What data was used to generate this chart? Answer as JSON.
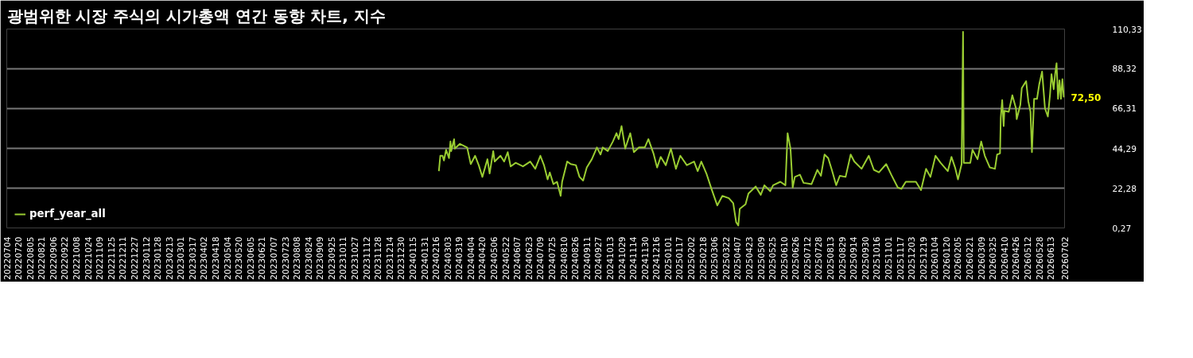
{
  "chart_data": {
    "type": "line",
    "title": "광범위한 시장 주식의 시가총액 연간 동향 차트, 지수",
    "xlim": [
      "2022-07-04",
      "2026-07-02"
    ],
    "xticks": [
      {
        "value": "2022-07-04",
        "label": "20220704"
      },
      {
        "value": "2022-07-20",
        "label": "20220720"
      },
      {
        "value": "2022-08-05",
        "label": "20220805"
      },
      {
        "value": "2022-08-21",
        "label": "20220821"
      },
      {
        "value": "2022-09-06",
        "label": "20220906"
      },
      {
        "value": "2022-09-22",
        "label": "20220922"
      },
      {
        "value": "2022-10-08",
        "label": "20221008"
      },
      {
        "value": "2022-10-24",
        "label": "20221024"
      },
      {
        "value": "2022-11-09",
        "label": "20221109"
      },
      {
        "value": "2022-11-25",
        "label": "20221125"
      },
      {
        "value": "2022-12-11",
        "label": "20221211"
      },
      {
        "value": "2022-12-27",
        "label": "20221227"
      },
      {
        "value": "2023-01-12",
        "label": "20230112"
      },
      {
        "value": "2023-01-28",
        "label": "20230128"
      },
      {
        "value": "2023-02-13",
        "label": "20230213"
      },
      {
        "value": "2023-03-01",
        "label": "20230301"
      },
      {
        "value": "2023-03-17",
        "label": "20230317"
      },
      {
        "value": "2023-04-02",
        "label": "20230402"
      },
      {
        "value": "2023-04-18",
        "label": "20230418"
      },
      {
        "value": "2023-05-04",
        "label": "20230504"
      },
      {
        "value": "2023-05-20",
        "label": "20230520"
      },
      {
        "value": "2023-06-05",
        "label": "20230605"
      },
      {
        "value": "2023-06-21",
        "label": "20230621"
      },
      {
        "value": "2023-07-07",
        "label": "20230707"
      },
      {
        "value": "2023-07-23",
        "label": "20230723"
      },
      {
        "value": "2023-08-08",
        "label": "20230808"
      },
      {
        "value": "2023-08-24",
        "label": "20230824"
      },
      {
        "value": "2023-09-09",
        "label": "20230909"
      },
      {
        "value": "2023-09-25",
        "label": "20230925"
      },
      {
        "value": "2023-10-11",
        "label": "20231011"
      },
      {
        "value": "2023-10-27",
        "label": "20231027"
      },
      {
        "value": "2023-11-12",
        "label": "20231112"
      },
      {
        "value": "2023-11-28",
        "label": "20231128"
      },
      {
        "value": "2023-12-14",
        "label": "20231214"
      },
      {
        "value": "2023-12-30",
        "label": "20231230"
      },
      {
        "value": "2024-01-15",
        "label": "20240115"
      },
      {
        "value": "2024-01-31",
        "label": "20240131"
      },
      {
        "value": "2024-02-16",
        "label": "20240216"
      },
      {
        "value": "2024-03-03",
        "label": "20240303"
      },
      {
        "value": "2024-03-19",
        "label": "20240319"
      },
      {
        "value": "2024-04-04",
        "label": "20240404"
      },
      {
        "value": "2024-04-20",
        "label": "20240420"
      },
      {
        "value": "2024-05-06",
        "label": "20240506"
      },
      {
        "value": "2024-05-22",
        "label": "20240522"
      },
      {
        "value": "2024-06-07",
        "label": "20240607"
      },
      {
        "value": "2024-06-23",
        "label": "20240623"
      },
      {
        "value": "2024-07-09",
        "label": "20240709"
      },
      {
        "value": "2024-07-25",
        "label": "20240725"
      },
      {
        "value": "2024-08-10",
        "label": "20240810"
      },
      {
        "value": "2024-08-26",
        "label": "20240826"
      },
      {
        "value": "2024-09-11",
        "label": "20240911"
      },
      {
        "value": "2024-09-27",
        "label": "20240927"
      },
      {
        "value": "2024-10-13",
        "label": "20241013"
      },
      {
        "value": "2024-10-29",
        "label": "20241029"
      },
      {
        "value": "2024-11-14",
        "label": "20241114"
      },
      {
        "value": "2024-11-30",
        "label": "20241130"
      },
      {
        "value": "2024-12-16",
        "label": "20241216"
      },
      {
        "value": "2025-01-01",
        "label": "20250101"
      },
      {
        "value": "2025-01-17",
        "label": "20250117"
      },
      {
        "value": "2025-02-02",
        "label": "20250202"
      },
      {
        "value": "2025-02-18",
        "label": "20250218"
      },
      {
        "value": "2025-03-06",
        "label": "20250306"
      },
      {
        "value": "2025-03-22",
        "label": "20250322"
      },
      {
        "value": "2025-04-07",
        "label": "20250407"
      },
      {
        "value": "2025-04-23",
        "label": "20250423"
      },
      {
        "value": "2025-05-09",
        "label": "20250509"
      },
      {
        "value": "2025-05-25",
        "label": "20250525"
      },
      {
        "value": "2025-06-10",
        "label": "20250610"
      },
      {
        "value": "2025-06-26",
        "label": "20250626"
      },
      {
        "value": "2025-07-12",
        "label": "20250712"
      },
      {
        "value": "2025-07-28",
        "label": "20250728"
      },
      {
        "value": "2025-08-13",
        "label": "20250813"
      },
      {
        "value": "2025-08-29",
        "label": "20250829"
      },
      {
        "value": "2025-09-14",
        "label": "20250914"
      },
      {
        "value": "2025-09-30",
        "label": "20250930"
      },
      {
        "value": "2025-10-16",
        "label": "20251016"
      },
      {
        "value": "2025-11-01",
        "label": "20251101"
      },
      {
        "value": "2025-11-17",
        "label": "20251117"
      },
      {
        "value": "2025-12-03",
        "label": "20251203"
      },
      {
        "value": "2025-12-19",
        "label": "20251219"
      },
      {
        "value": "2026-01-04",
        "label": "20260104"
      },
      {
        "value": "2026-01-20",
        "label": "20260120"
      },
      {
        "value": "2026-02-05",
        "label": "20260205"
      },
      {
        "value": "2026-02-21",
        "label": "20260221"
      },
      {
        "value": "2026-03-09",
        "label": "20260309"
      },
      {
        "value": "2026-03-25",
        "label": "20260325"
      },
      {
        "value": "2026-04-10",
        "label": "20260410"
      },
      {
        "value": "2026-04-26",
        "label": "20260426"
      },
      {
        "value": "2026-05-12",
        "label": "20260512"
      },
      {
        "value": "2026-05-28",
        "label": "20260528"
      },
      {
        "value": "2026-06-13",
        "label": "20260613"
      },
      {
        "value": "2026-07-02",
        "label": "20260702"
      }
    ],
    "ylim": [
      0.27,
      110.33
    ],
    "yticks": [
      {
        "value": 0.27,
        "label": "0,27"
      },
      {
        "value": 22.28,
        "label": "22,28"
      },
      {
        "value": 44.29,
        "label": "44,29"
      },
      {
        "value": 66.31,
        "label": "66,31"
      },
      {
        "value": 88.32,
        "label": "88,32"
      },
      {
        "value": 110.33,
        "label": "110,33"
      }
    ],
    "grid": "y",
    "legend": "bottom",
    "x": [
      "2024-02-20",
      "2024-02-22",
      "2024-02-25",
      "2024-02-27",
      "2024-03-01",
      "2024-03-05",
      "2024-03-07",
      "2024-03-08",
      "2024-03-12",
      "2024-03-13",
      "2024-03-20",
      "2024-03-30",
      "2024-04-04",
      "2024-04-10",
      "2024-04-15",
      "2024-04-20",
      "2024-04-27",
      "2024-04-30",
      "2024-05-05",
      "2024-05-07",
      "2024-05-15",
      "2024-05-20",
      "2024-05-25",
      "2024-05-29",
      "2024-06-05",
      "2024-06-15",
      "2024-06-25",
      "2024-07-02",
      "2024-07-09",
      "2024-07-14",
      "2024-07-19",
      "2024-07-22",
      "2024-07-27",
      "2024-08-01",
      "2024-08-06",
      "2024-08-08",
      "2024-08-15",
      "2024-08-20",
      "2024-08-27",
      "2024-09-01",
      "2024-09-06",
      "2024-09-11",
      "2024-09-18",
      "2024-09-25",
      "2024-09-30",
      "2024-10-03",
      "2024-10-10",
      "2024-10-17",
      "2024-10-22",
      "2024-10-25",
      "2024-10-29",
      "2024-11-03",
      "2024-11-10",
      "2024-11-15",
      "2024-11-22",
      "2024-11-30",
      "2024-12-05",
      "2024-12-12",
      "2024-12-17",
      "2024-12-22",
      "2024-12-29",
      "2025-01-05",
      "2025-01-12",
      "2025-01-18",
      "2025-01-27",
      "2025-02-06",
      "2025-02-11",
      "2025-02-16",
      "2025-02-23",
      "2025-03-02",
      "2025-03-10",
      "2025-03-17",
      "2025-03-26",
      "2025-04-01",
      "2025-04-05",
      "2025-04-08",
      "2025-04-10",
      "2025-04-18",
      "2025-04-22",
      "2025-05-02",
      "2025-05-09",
      "2025-05-14",
      "2025-05-22",
      "2025-05-26",
      "2025-06-05",
      "2025-06-12",
      "2025-06-15",
      "2025-06-19",
      "2025-06-22",
      "2025-06-25",
      "2025-07-02",
      "2025-07-07",
      "2025-07-18",
      "2025-07-26",
      "2025-07-31",
      "2025-08-05",
      "2025-08-10",
      "2025-08-15",
      "2025-08-21",
      "2025-08-26",
      "2025-09-03",
      "2025-09-10",
      "2025-09-15",
      "2025-09-25",
      "2025-10-05",
      "2025-10-12",
      "2025-10-19",
      "2025-10-29",
      "2025-11-05",
      "2025-11-14",
      "2025-11-19",
      "2025-11-25",
      "2025-12-09",
      "2025-12-16",
      "2025-12-23",
      "2025-12-29",
      "2026-01-05",
      "2026-01-12",
      "2026-01-22",
      "2026-01-27",
      "2026-02-01",
      "2026-02-05",
      "2026-02-10",
      "2026-02-12",
      "2026-02-13",
      "2026-02-22",
      "2026-02-25",
      "2026-03-04",
      "2026-03-09",
      "2026-03-14",
      "2026-03-21",
      "2026-03-28",
      "2026-03-31",
      "2026-04-04",
      "2026-04-05",
      "2026-04-07",
      "2026-04-09",
      "2026-04-10",
      "2026-04-16",
      "2026-04-21",
      "2026-04-26",
      "2026-04-27",
      "2026-05-02",
      "2026-05-04",
      "2026-05-10",
      "2026-05-13",
      "2026-05-16",
      "2026-05-18",
      "2026-05-21",
      "2026-05-25",
      "2026-05-28",
      "2026-06-01",
      "2026-06-05",
      "2026-06-09",
      "2026-06-12",
      "2026-06-14",
      "2026-06-17",
      "2026-06-19",
      "2026-06-21",
      "2026-06-23",
      "2026-06-25",
      "2026-06-27",
      "2026-06-29",
      "2026-07-01"
    ],
    "series": [
      {
        "name": "perf_year_all",
        "color": "#9acd32",
        "values": [
          31.7,
          40.2,
          40.2,
          37.6,
          43.5,
          38.9,
          48.1,
          42.8,
          49.4,
          44.2,
          46.8,
          44.8,
          35.6,
          40.2,
          35.0,
          28.5,
          38.3,
          30.4,
          42.8,
          37.0,
          40.2,
          37.0,
          42.2,
          34.3,
          36.3,
          34.3,
          37.0,
          33.0,
          40.2,
          35.0,
          27.1,
          31.0,
          24.5,
          25.8,
          18.0,
          25.8,
          37.0,
          35.6,
          35.0,
          28.5,
          26.5,
          33.7,
          38.3,
          44.8,
          40.9,
          44.8,
          42.8,
          48.1,
          52.7,
          49.4,
          56.6,
          44.2,
          52.7,
          42.2,
          44.8,
          44.8,
          49.4,
          41.5,
          33.7,
          39.6,
          35.0,
          44.2,
          33.0,
          40.2,
          35.0,
          37.0,
          31.7,
          37.0,
          30.4,
          21.9,
          12.7,
          18.0,
          16.7,
          14.0,
          3.5,
          1.6,
          10.8,
          13.4,
          19.3,
          23.2,
          18.6,
          23.9,
          20.6,
          23.9,
          25.8,
          23.9,
          52.7,
          44.2,
          22.6,
          28.5,
          29.7,
          25.2,
          24.5,
          32.4,
          29.1,
          40.9,
          38.9,
          32.4,
          23.9,
          29.1,
          28.5,
          40.9,
          37.0,
          33.0,
          40.2,
          32.4,
          31.0,
          35.6,
          29.7,
          22.6,
          21.9,
          25.8,
          25.8,
          21.2,
          33.0,
          28.5,
          40.2,
          36.3,
          31.7,
          39.6,
          33.7,
          27.1,
          35.6,
          108.8,
          36.3,
          36.3,
          43.5,
          38.3,
          48.1,
          40.2,
          33.7,
          33.0,
          40.9,
          41.5,
          61.2,
          71.0,
          56.6,
          65.1,
          64.5,
          73.7,
          66.4,
          60.5,
          68.4,
          77.6,
          81.5,
          70.4,
          64.5,
          42.2,
          71.7,
          71.7,
          79.6,
          86.8,
          66.4,
          61.9,
          74.3,
          85.4,
          77.0,
          85.4,
          91.4,
          71.7,
          81.9,
          71.7,
          82.6,
          72.5
        ],
        "value_labels": [
          null,
          null,
          null,
          null,
          null,
          null,
          null,
          null,
          null,
          null,
          null,
          null,
          null,
          null,
          null,
          null,
          null,
          null,
          null,
          null,
          null,
          null,
          null,
          null,
          null,
          null,
          null,
          null,
          null,
          null,
          null,
          null,
          null,
          null,
          null,
          null,
          null,
          null,
          null,
          null,
          null,
          null,
          null,
          null,
          null,
          null,
          null,
          null,
          null,
          null,
          null,
          null,
          null,
          null,
          null,
          null,
          null,
          null,
          null,
          null,
          null,
          null,
          null,
          null,
          null,
          null,
          null,
          null,
          null,
          null,
          null,
          null,
          null,
          null,
          null,
          null,
          null,
          null,
          null,
          null,
          null,
          null,
          null,
          null,
          null,
          null,
          null,
          null,
          null,
          null,
          null,
          null,
          null,
          null,
          null,
          null,
          null,
          null,
          null,
          null,
          null,
          null,
          null,
          null,
          null,
          null,
          null,
          null,
          null,
          null,
          null,
          null,
          null,
          null,
          null,
          null,
          null,
          null,
          null,
          null,
          null,
          null,
          null,
          null,
          null,
          null,
          null,
          null,
          null,
          null,
          null,
          null,
          null,
          null,
          null,
          null,
          null,
          null,
          null,
          null,
          null,
          null,
          null,
          null,
          null,
          null,
          null,
          null,
          null,
          null,
          null,
          null,
          null,
          null,
          null,
          null,
          null,
          null,
          null,
          null,
          null,
          null,
          null,
          "72,50"
        ]
      }
    ]
  }
}
